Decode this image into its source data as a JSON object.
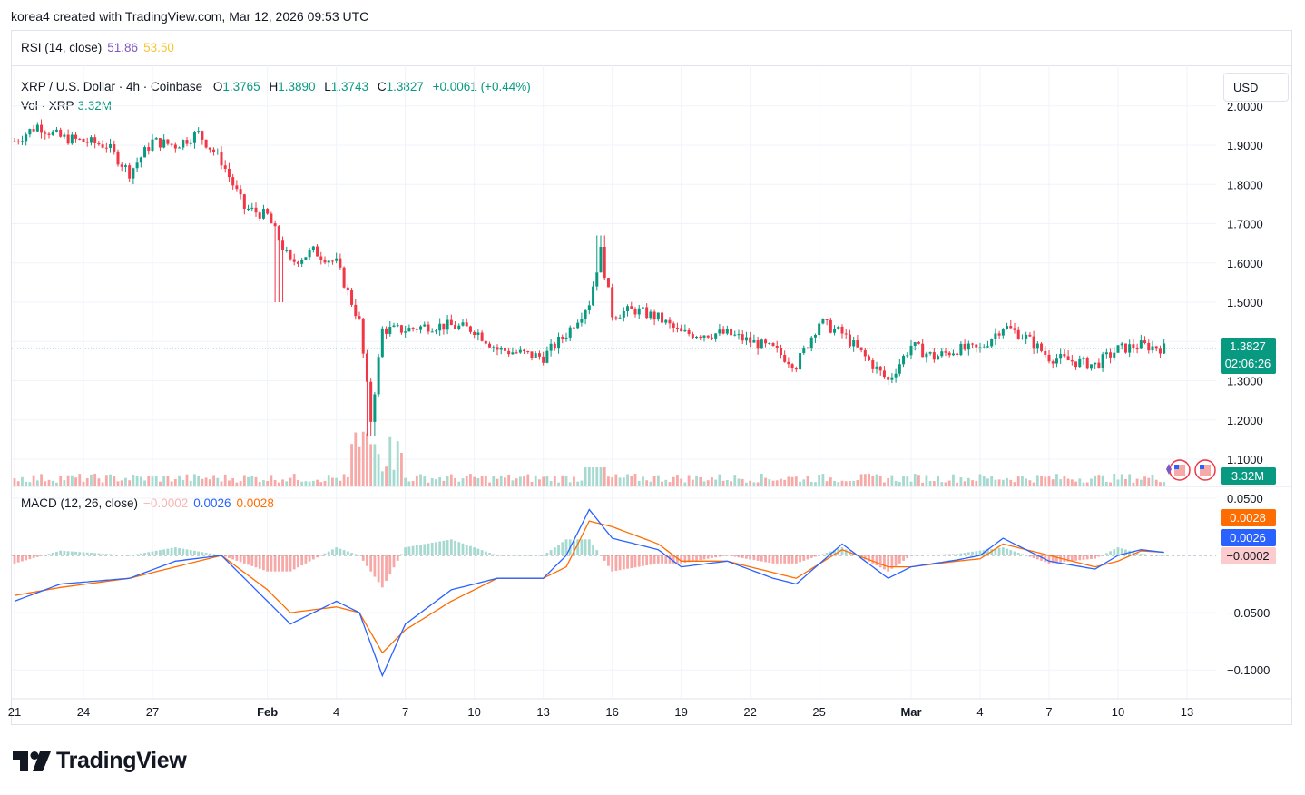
{
  "credit": "korea4 created with TradingView.com, Mar 12, 2026 09:53 UTC",
  "rsi": {
    "label": "RSI (14, close)",
    "value1": "51.86",
    "value2": "53.50"
  },
  "symbol": {
    "name": "XRP / U.S. Dollar · 4h · Coinbase",
    "o_label": "O",
    "o": "1.3765",
    "h_label": "H",
    "h": "1.3890",
    "l_label": "L",
    "l": "1.3743",
    "c_label": "C",
    "c": "1.3827",
    "change": "+0.0061 (+0.44%)"
  },
  "volume": {
    "label": "Vol · XRP",
    "value": "3.32M"
  },
  "currency": "USD",
  "macd": {
    "label": "MACD (12, 26, close)",
    "hist": "−0.0002",
    "macd": "0.0026",
    "signal": "0.0028"
  },
  "price_axis": [
    "2.0000",
    "1.9000",
    "1.8000",
    "1.7000",
    "1.6000",
    "1.5000",
    "1.4000",
    "1.3000",
    "1.2000",
    "1.1000"
  ],
  "macd_axis": [
    "0.0500",
    "−0.0500",
    "−0.1000"
  ],
  "time_axis": [
    "21",
    "24",
    "27",
    "Feb",
    "4",
    "7",
    "10",
    "13",
    "16",
    "19",
    "22",
    "25",
    "Mar",
    "4",
    "7",
    "10",
    "13"
  ],
  "badges": {
    "price": "1.3827",
    "countdown": "02:06:26",
    "volume": "3.32M",
    "signal": "0.0028",
    "macd": "0.0026",
    "hist": "−0.0002"
  },
  "colors": {
    "up": "#089981",
    "down": "#f23645",
    "vol_up": "#a6d9d0",
    "vol_down": "#f7a9a7",
    "macd": "#2962ff",
    "signal": "#ff6d00"
  },
  "brand": "TradingView",
  "chart_data": {
    "type": "candlestick",
    "title": "XRP / U.S. Dollar · 4h · Coinbase",
    "interval": "4h",
    "x_range": [
      "Jan 21",
      "Mar 13"
    ],
    "ylim": [
      1.05,
      2.0
    ],
    "grid": true,
    "last": {
      "open": 1.3765,
      "high": 1.389,
      "low": 1.3743,
      "close": 1.3827,
      "volume": "3.32M"
    },
    "close_path": [
      [
        "Jan 21",
        1.91
      ],
      [
        "Jan 22",
        1.95
      ],
      [
        "Jan 23",
        1.92
      ],
      [
        "Jan 24",
        1.91
      ],
      [
        "Jan 25",
        1.9
      ],
      [
        "Jan 26",
        1.83
      ],
      [
        "Jan 27",
        1.91
      ],
      [
        "Jan 28",
        1.9
      ],
      [
        "Jan 29",
        1.93
      ],
      [
        "Jan 30",
        1.86
      ],
      [
        "Jan 31",
        1.74
      ],
      [
        "Feb 1",
        1.72
      ],
      [
        "Feb 2",
        1.6
      ],
      [
        "Feb 3",
        1.63
      ],
      [
        "Feb 4",
        1.6
      ],
      [
        "Feb 5",
        1.45
      ],
      [
        "Feb 5.5",
        1.2
      ],
      [
        "Feb 6",
        1.43
      ],
      [
        "Feb 7",
        1.43
      ],
      [
        "Feb 8",
        1.44
      ],
      [
        "Feb 9",
        1.44
      ],
      [
        "Feb 10",
        1.43
      ],
      [
        "Feb 11",
        1.38
      ],
      [
        "Feb 12",
        1.37
      ],
      [
        "Feb 13",
        1.36
      ],
      [
        "Feb 14",
        1.42
      ],
      [
        "Feb 15",
        1.5
      ],
      [
        "Feb 15.5",
        1.63
      ],
      [
        "Feb 16",
        1.47
      ],
      [
        "Feb 17",
        1.48
      ],
      [
        "Feb 18",
        1.46
      ],
      [
        "Feb 19",
        1.42
      ],
      [
        "Feb 20",
        1.42
      ],
      [
        "Feb 21",
        1.42
      ],
      [
        "Feb 22",
        1.4
      ],
      [
        "Feb 23",
        1.38
      ],
      [
        "Feb 24",
        1.34
      ],
      [
        "Feb 25",
        1.45
      ],
      [
        "Feb 26",
        1.42
      ],
      [
        "Feb 27",
        1.36
      ],
      [
        "Feb 28",
        1.3
      ],
      [
        "Mar 1",
        1.39
      ],
      [
        "Mar 2",
        1.36
      ],
      [
        "Mar 3",
        1.38
      ],
      [
        "Mar 4",
        1.38
      ],
      [
        "Mar 5",
        1.44
      ],
      [
        "Mar 6",
        1.41
      ],
      [
        "Mar 7",
        1.36
      ],
      [
        "Mar 8",
        1.35
      ],
      [
        "Mar 9",
        1.34
      ],
      [
        "Mar 10",
        1.38
      ],
      [
        "Mar 11",
        1.39
      ],
      [
        "Mar 12",
        1.3827
      ]
    ],
    "macd_series": [
      {
        "name": "MACD",
        "values": [
          [
            "Jan 21",
            -0.04
          ],
          [
            "Jan 23",
            -0.025
          ],
          [
            "Jan 26",
            -0.02
          ],
          [
            "Jan 28",
            -0.005
          ],
          [
            "Jan 30",
            0.0
          ],
          [
            "Feb 1",
            -0.04
          ],
          [
            "Feb 2",
            -0.06
          ],
          [
            "Feb 4",
            -0.04
          ],
          [
            "Feb 5",
            -0.05
          ],
          [
            "Feb 6",
            -0.105
          ],
          [
            "Feb 7",
            -0.06
          ],
          [
            "Feb 9",
            -0.03
          ],
          [
            "Feb 11",
            -0.02
          ],
          [
            "Feb 13",
            -0.02
          ],
          [
            "Feb 14",
            0.0
          ],
          [
            "Feb 15",
            0.04
          ],
          [
            "Feb 16",
            0.015
          ],
          [
            "Feb 18",
            0.005
          ],
          [
            "Feb 19",
            -0.01
          ],
          [
            "Feb 21",
            -0.005
          ],
          [
            "Feb 23",
            -0.02
          ],
          [
            "Feb 24",
            -0.025
          ],
          [
            "Feb 26",
            0.01
          ],
          [
            "Feb 28",
            -0.02
          ],
          [
            "Mar 1",
            -0.01
          ],
          [
            "Mar 3",
            -0.004
          ],
          [
            "Mar 4",
            0.0
          ],
          [
            "Mar 5",
            0.015
          ],
          [
            "Mar 7",
            -0.005
          ],
          [
            "Mar 9",
            -0.012
          ],
          [
            "Mar 10",
            0.0
          ],
          [
            "Mar 11",
            0.005
          ],
          [
            "Mar 12",
            0.0026
          ]
        ]
      },
      {
        "name": "Signal",
        "values": [
          [
            "Jan 21",
            -0.035
          ],
          [
            "Jan 23",
            -0.028
          ],
          [
            "Jan 26",
            -0.02
          ],
          [
            "Jan 28",
            -0.01
          ],
          [
            "Jan 30",
            0.0
          ],
          [
            "Feb 1",
            -0.03
          ],
          [
            "Feb 2",
            -0.05
          ],
          [
            "Feb 4",
            -0.045
          ],
          [
            "Feb 5",
            -0.05
          ],
          [
            "Feb 6",
            -0.085
          ],
          [
            "Feb 7",
            -0.065
          ],
          [
            "Feb 9",
            -0.04
          ],
          [
            "Feb 11",
            -0.02
          ],
          [
            "Feb 13",
            -0.02
          ],
          [
            "Feb 14",
            -0.01
          ],
          [
            "Feb 15",
            0.03
          ],
          [
            "Feb 16",
            0.025
          ],
          [
            "Feb 18",
            0.01
          ],
          [
            "Feb 19",
            -0.005
          ],
          [
            "Feb 21",
            -0.005
          ],
          [
            "Feb 23",
            -0.015
          ],
          [
            "Feb 24",
            -0.02
          ],
          [
            "Feb 26",
            0.005
          ],
          [
            "Feb 28",
            -0.01
          ],
          [
            "Mar 1",
            -0.01
          ],
          [
            "Mar 3",
            -0.005
          ],
          [
            "Mar 4",
            -0.003
          ],
          [
            "Mar 5",
            0.01
          ],
          [
            "Mar 7",
            0.0
          ],
          [
            "Mar 9",
            -0.01
          ],
          [
            "Mar 10",
            -0.005
          ],
          [
            "Mar 11",
            0.004
          ],
          [
            "Mar 12",
            0.0028
          ]
        ]
      }
    ]
  }
}
